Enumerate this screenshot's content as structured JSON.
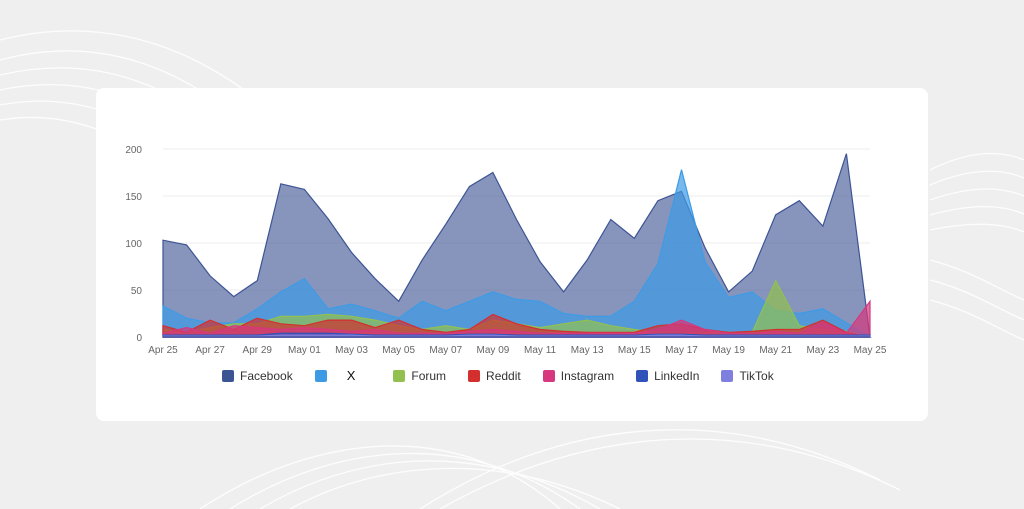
{
  "chart_data": {
    "type": "area",
    "x": [
      "Apr 25",
      "Apr 26",
      "Apr 27",
      "Apr 28",
      "Apr 29",
      "Apr 30",
      "May 01",
      "May 02",
      "May 03",
      "May 04",
      "May 05",
      "May 06",
      "May 07",
      "May 08",
      "May 09",
      "May 10",
      "May 11",
      "May 12",
      "May 13",
      "May 14",
      "May 15",
      "May 16",
      "May 17",
      "May 18",
      "May 19",
      "May 20",
      "May 21",
      "May 22",
      "May 23",
      "May 24",
      "May 25"
    ],
    "xticks": [
      "Apr 25",
      "Apr 27",
      "Apr 29",
      "May 01",
      "May 03",
      "May 05",
      "May 07",
      "May 09",
      "May 11",
      "May 13",
      "May 15",
      "May 17",
      "May 19",
      "May 21",
      "May 23",
      "May 25"
    ],
    "yticks": [
      0,
      50,
      100,
      150,
      200
    ],
    "ylim": [
      0,
      200
    ],
    "grid": true,
    "legend_position": "bottom",
    "title": "",
    "xlabel": "",
    "ylabel": "",
    "series": [
      {
        "name": "Facebook",
        "color": "#3d5494",
        "values": [
          103,
          98,
          65,
          43,
          60,
          163,
          157,
          126,
          90,
          62,
          38,
          82,
          120,
          160,
          175,
          125,
          80,
          48,
          82,
          125,
          105,
          145,
          155,
          95,
          48,
          70,
          130,
          145,
          118,
          195,
          0
        ]
      },
      {
        "name": "X",
        "color": "#3d9be6",
        "values": [
          33,
          20,
          15,
          15,
          30,
          48,
          62,
          30,
          35,
          28,
          20,
          38,
          28,
          38,
          48,
          40,
          38,
          25,
          22,
          22,
          38,
          78,
          178,
          80,
          42,
          48,
          28,
          25,
          30,
          15,
          0
        ]
      },
      {
        "name": "Forum",
        "color": "#92c14f",
        "values": [
          8,
          5,
          10,
          14,
          14,
          22,
          22,
          24,
          22,
          18,
          12,
          8,
          12,
          8,
          18,
          14,
          10,
          14,
          18,
          12,
          8,
          5,
          5,
          5,
          5,
          5,
          60,
          12,
          8,
          6,
          0
        ]
      },
      {
        "name": "Reddit",
        "color": "#d32f2f",
        "values": [
          12,
          5,
          18,
          8,
          20,
          14,
          12,
          18,
          18,
          10,
          18,
          8,
          5,
          8,
          24,
          14,
          8,
          6,
          5,
          5,
          5,
          12,
          14,
          8,
          5,
          6,
          8,
          8,
          18,
          5,
          0
        ]
      },
      {
        "name": "Instagram",
        "color": "#d6377e",
        "values": [
          4,
          10,
          4,
          12,
          10,
          8,
          10,
          8,
          6,
          8,
          4,
          4,
          4,
          6,
          8,
          6,
          4,
          4,
          4,
          4,
          4,
          8,
          18,
          8,
          4,
          4,
          6,
          4,
          16,
          4,
          38
        ]
      },
      {
        "name": "LinkedIn",
        "color": "#3152b8",
        "values": [
          2,
          2,
          2,
          2,
          2,
          4,
          4,
          4,
          3,
          2,
          2,
          2,
          2,
          3,
          3,
          2,
          2,
          2,
          2,
          2,
          2,
          3,
          3,
          2,
          2,
          2,
          2,
          2,
          2,
          2,
          2
        ]
      },
      {
        "name": "TikTok",
        "color": "#7e7fde",
        "values": [
          1,
          1,
          1,
          1,
          1,
          2,
          2,
          2,
          2,
          1,
          1,
          1,
          1,
          2,
          2,
          1,
          1,
          1,
          1,
          1,
          1,
          2,
          2,
          1,
          1,
          1,
          1,
          1,
          1,
          1,
          1
        ]
      }
    ]
  }
}
